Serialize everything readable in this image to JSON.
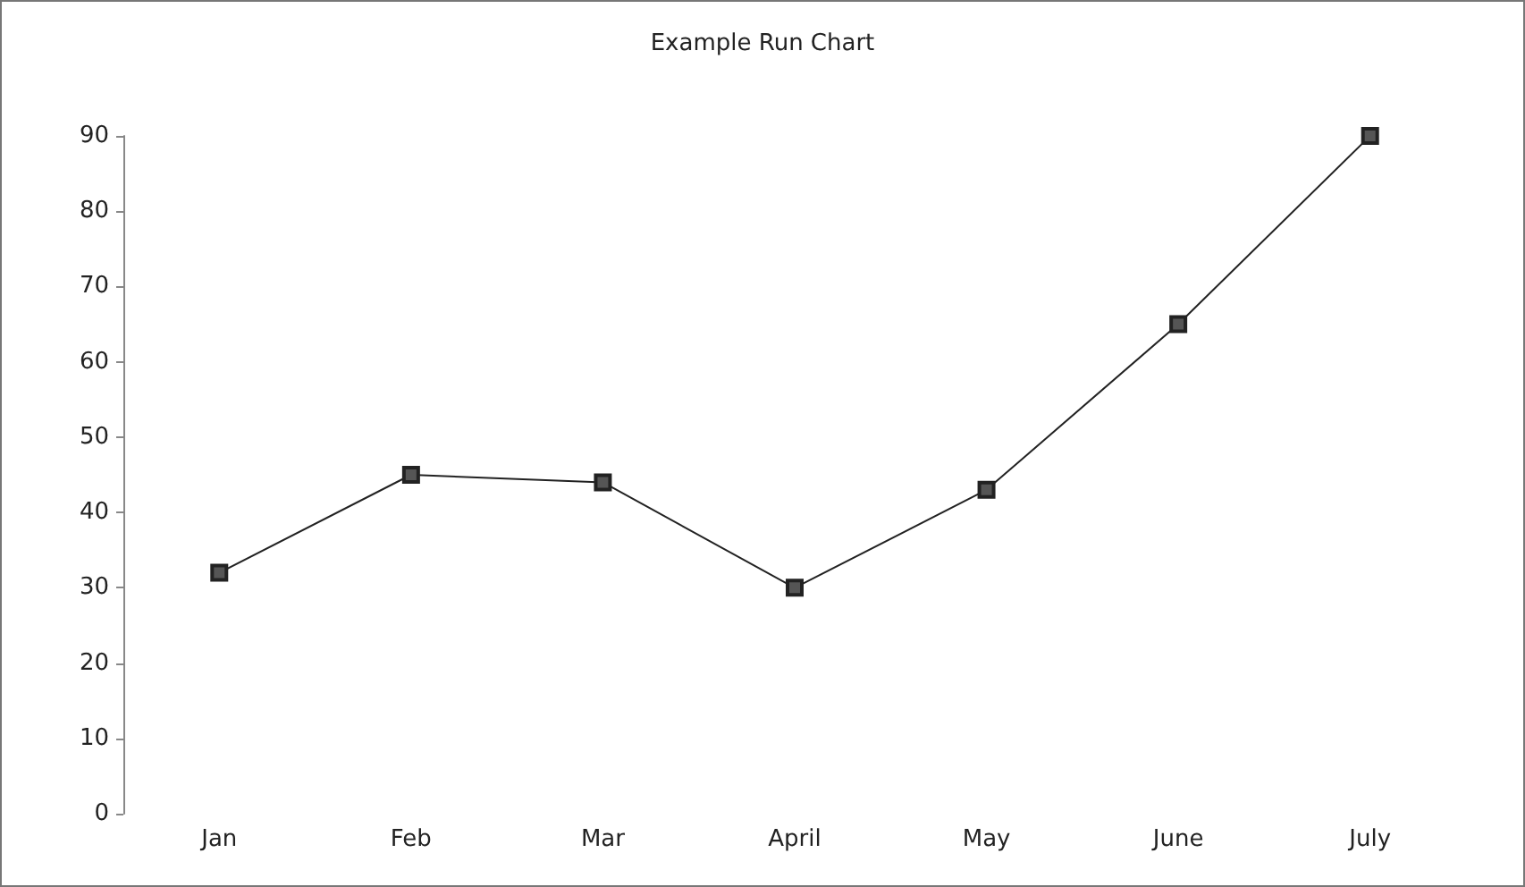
{
  "chart_data": {
    "type": "line",
    "title": "Example Run Chart",
    "categories": [
      "Jan",
      "Feb",
      "Mar",
      "April",
      "May",
      "June",
      "July"
    ],
    "series": [
      {
        "color": "#222222",
        "values": [
          32,
          45,
          44,
          30,
          43,
          65,
          90
        ]
      }
    ],
    "ylim": [
      0,
      90
    ],
    "yticks": [
      0,
      10,
      20,
      30,
      40,
      50,
      60,
      70,
      80,
      90
    ],
    "grid": false,
    "marker": "square",
    "line_style": "solid"
  }
}
